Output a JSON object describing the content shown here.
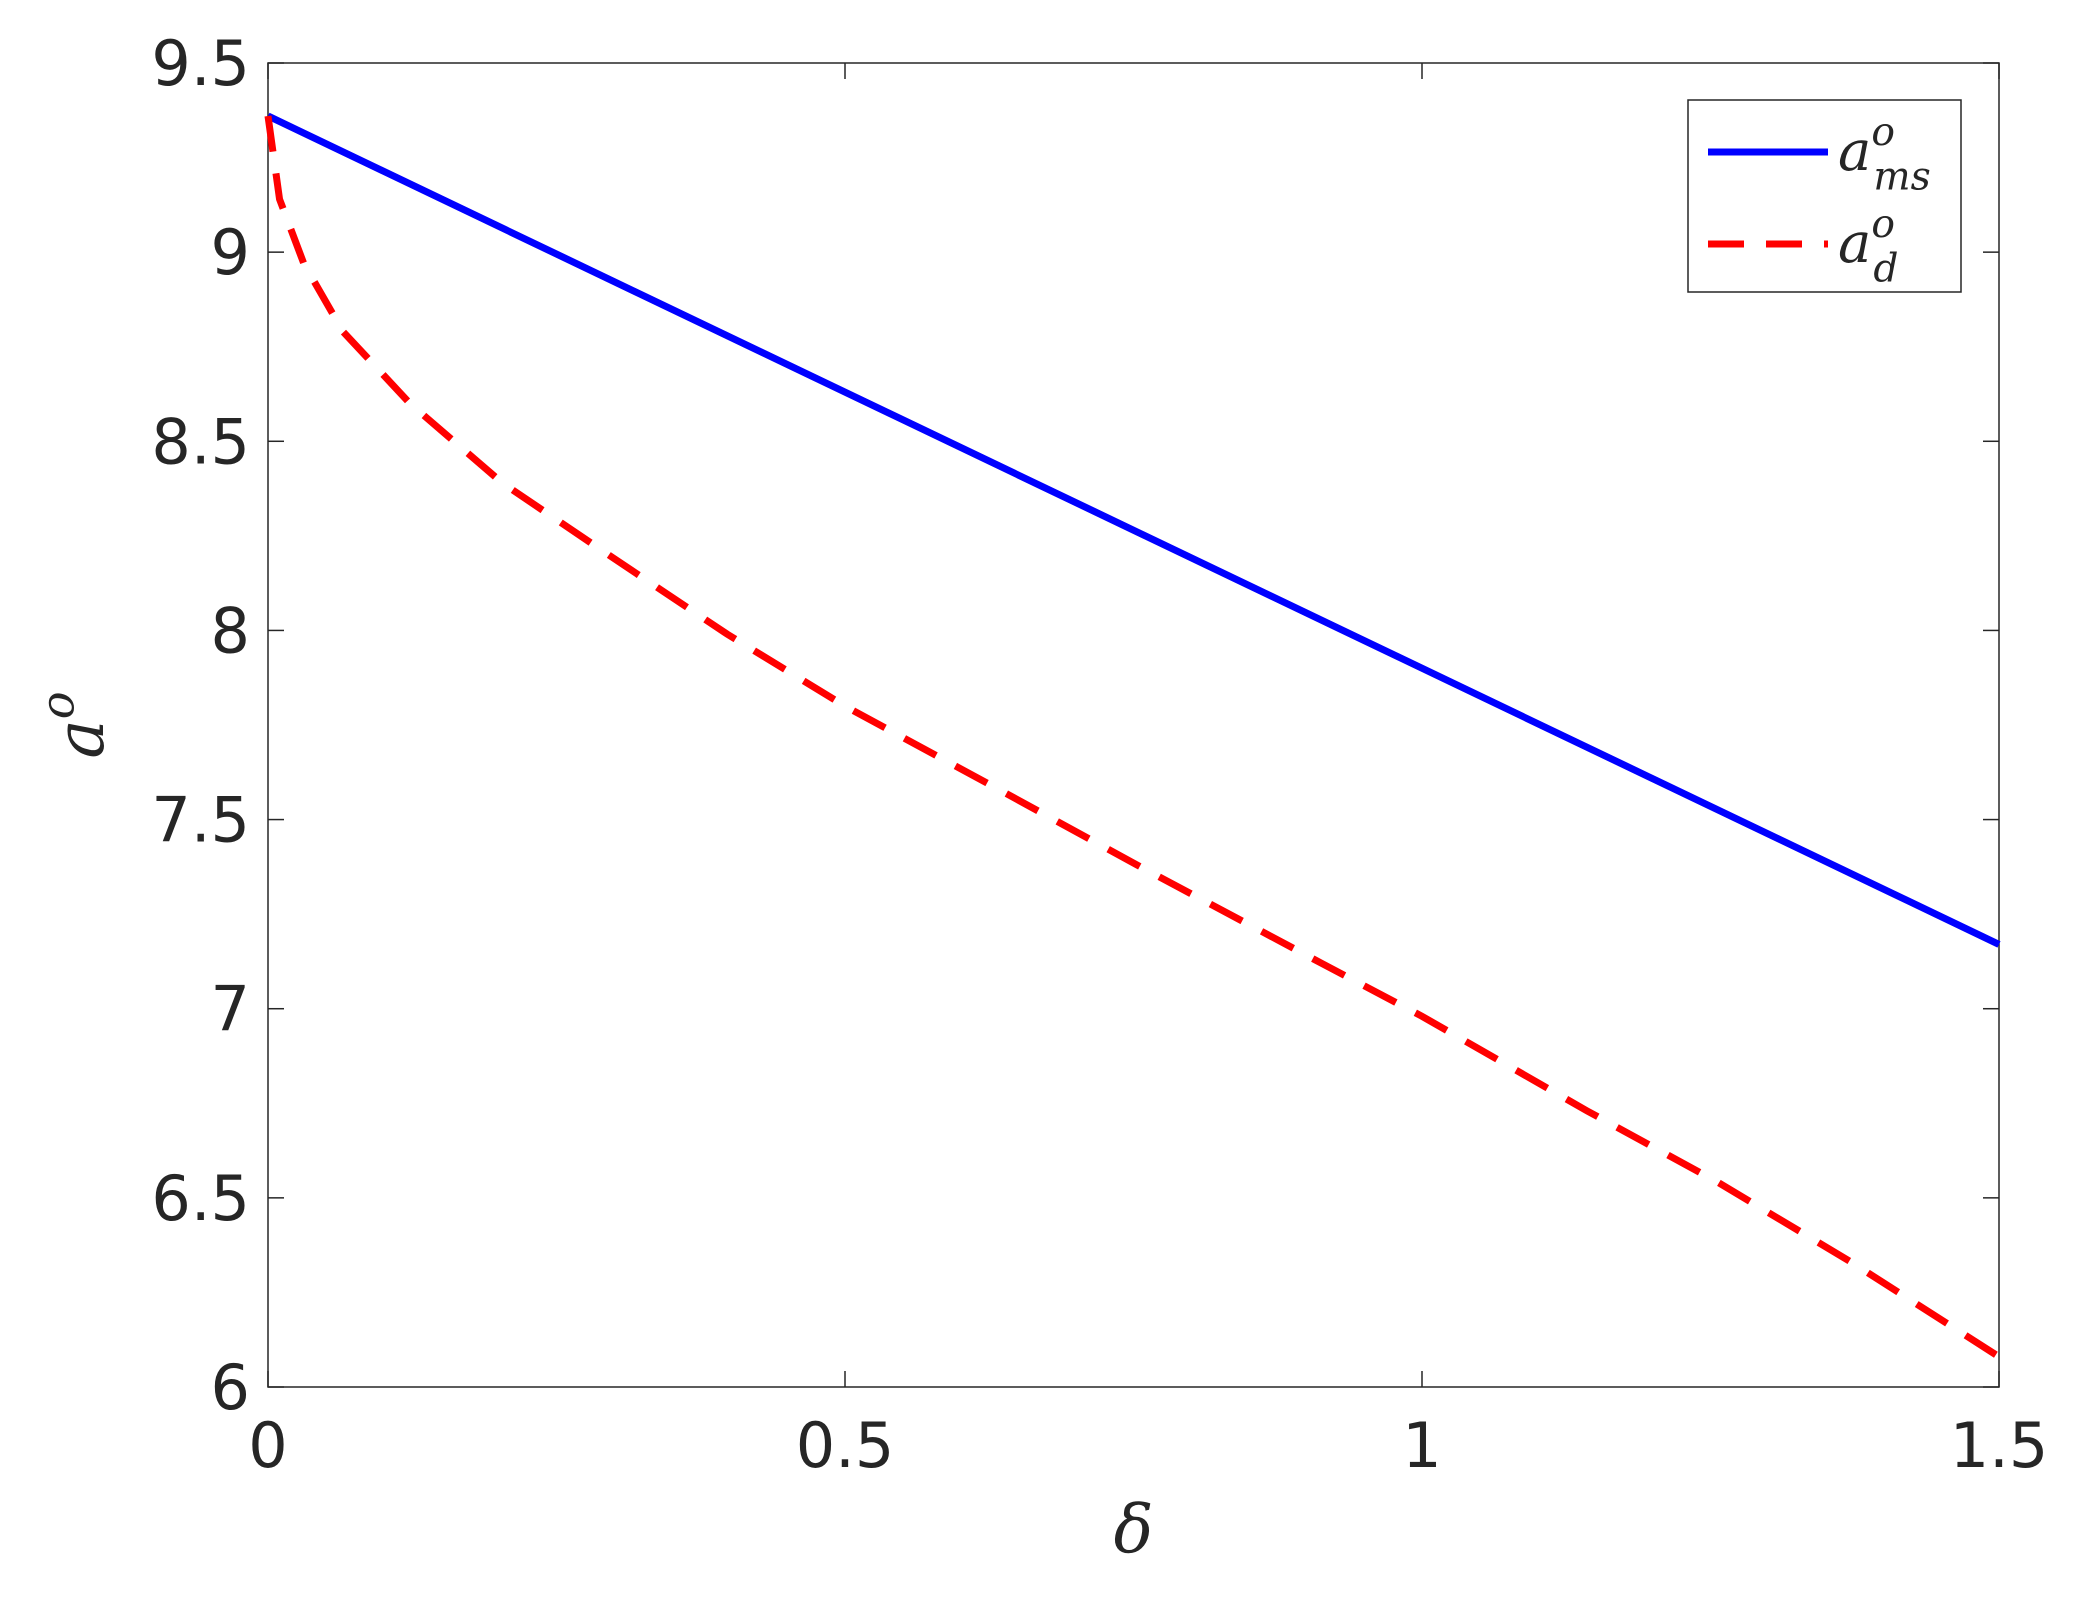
{
  "chart_data": {
    "type": "line",
    "x_label": "δ",
    "y_label": "a^o",
    "xlim": [
      0,
      1.5
    ],
    "xticks": [
      0,
      0.5,
      1,
      1.5
    ],
    "ylim": [
      6,
      9.5
    ],
    "yticks": [
      6,
      6.5,
      7,
      7.5,
      8,
      8.5,
      9,
      9.5
    ],
    "legend": "upper right",
    "series": [
      {
        "name": "a^o_ms",
        "color": "#0000ff",
        "style": "solid",
        "x": [
          0,
          1.5
        ],
        "values": [
          9.36,
          7.17
        ]
      },
      {
        "name": "a^o_d",
        "color": "#ff0000",
        "style": "dashed",
        "x": [
          0,
          0.01,
          0.031,
          0.065,
          0.123,
          0.203,
          0.295,
          0.398,
          0.5,
          0.627,
          0.753,
          0.913,
          1.0,
          1.143,
          1.257,
          1.372,
          1.5
        ],
        "values": [
          9.36,
          9.14,
          8.97,
          8.79,
          8.6,
          8.39,
          8.2,
          7.99,
          7.8,
          7.59,
          7.38,
          7.12,
          6.98,
          6.73,
          6.54,
          6.33,
          6.08
        ]
      }
    ]
  }
}
